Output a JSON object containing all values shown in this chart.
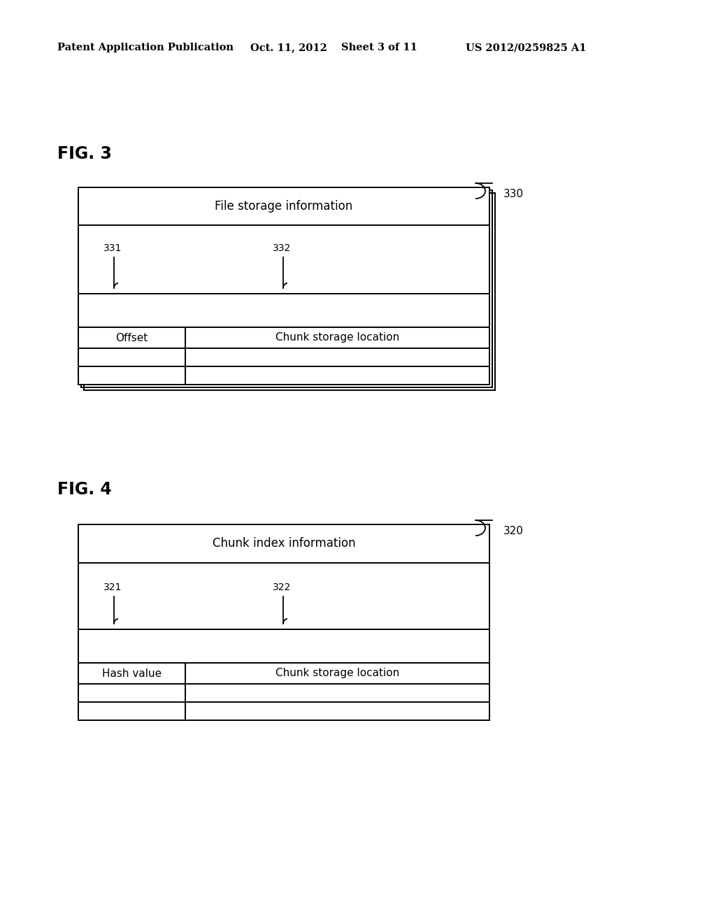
{
  "bg_color": "#ffffff",
  "header_text": "Patent Application Publication",
  "header_date": "Oct. 11, 2012",
  "header_sheet": "Sheet 3 of 11",
  "header_patent": "US 2012/0259825 A1",
  "fig3_label": "FIG. 3",
  "fig4_label": "FIG. 4",
  "fig3_ref": "330",
  "fig3_title": "File storage information",
  "fig3_col1_label": "Offset",
  "fig3_col2_label": "Chunk storage location",
  "fig3_ref1": "331",
  "fig3_ref2": "332",
  "fig4_ref": "320",
  "fig4_title": "Chunk index information",
  "fig4_col1_label": "Hash value",
  "fig4_col2_label": "Chunk storage location",
  "fig4_ref1": "321",
  "fig4_ref2": "322",
  "lw": 1.4
}
